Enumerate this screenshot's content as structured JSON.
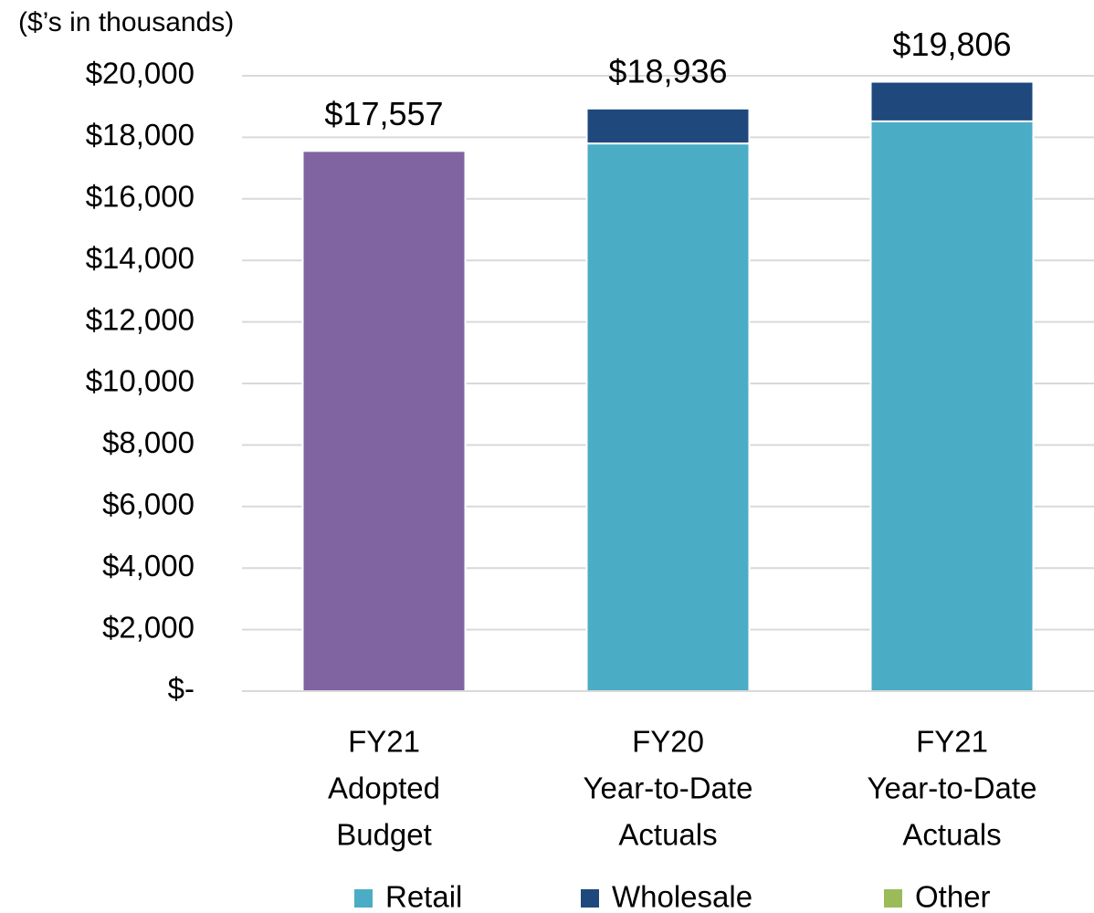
{
  "chart_data": {
    "type": "stacked_bar",
    "ylabel": "($’s in thousands)",
    "categories": [
      [
        "FY21",
        "Adopted",
        "Budget"
      ],
      [
        "FY20",
        "Year-to-Date",
        "Actuals"
      ],
      [
        "FY21",
        "Year-to-Date",
        "Actuals"
      ]
    ],
    "series": [
      {
        "color": "#8064a2",
        "values": [
          17557,
          null,
          null
        ]
      },
      {
        "name": "Retail",
        "color": "#4bacc6",
        "values": [
          null,
          17800,
          18520
        ]
      },
      {
        "name": "Wholesale",
        "color": "#1f497d",
        "values": [
          null,
          1136,
          1286
        ]
      },
      {
        "name": "Other",
        "color": "#9bbb59",
        "values": [
          null,
          0,
          0
        ]
      }
    ],
    "totals": [
      17557,
      18936,
      19806
    ],
    "total_labels": [
      "$17,557",
      "$18,936",
      "$19,806"
    ],
    "ylim": [
      0,
      20000
    ],
    "yticks": [
      {
        "value": 0,
        "label": "$-"
      },
      {
        "value": 2000,
        "label": "$2,000"
      },
      {
        "value": 4000,
        "label": "$4,000"
      },
      {
        "value": 6000,
        "label": "$6,000"
      },
      {
        "value": 8000,
        "label": "$8,000"
      },
      {
        "value": 10000,
        "label": "$10,000"
      },
      {
        "value": 12000,
        "label": "$12,000"
      },
      {
        "value": 14000,
        "label": "$14,000"
      },
      {
        "value": 16000,
        "label": "$16,000"
      },
      {
        "value": 18000,
        "label": "$18,000"
      },
      {
        "value": 20000,
        "label": "$20,000"
      }
    ],
    "grid": true
  }
}
